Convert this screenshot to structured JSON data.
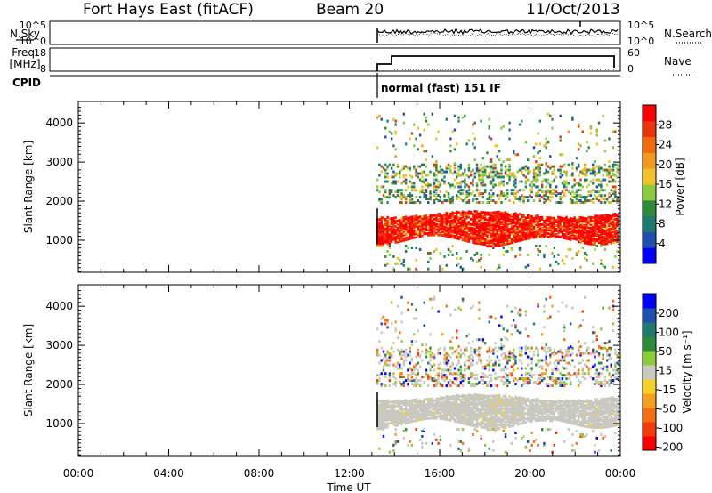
{
  "header": {
    "station": "Fort Hays East (fitACF)",
    "beam": "Beam 20",
    "date": "11/Oct/2013"
  },
  "noise_panel": {
    "left_label": "N.Sky",
    "right_label": "N.Search",
    "ticks_left": [
      "10^5",
      "10^0"
    ],
    "ticks_right": [
      "10^5",
      "10^0"
    ]
  },
  "freq_panel": {
    "left_label_1": "Freq.",
    "left_label_2": "[MHz]",
    "right_label": "Nave",
    "ticks_left": [
      "18",
      "8"
    ],
    "ticks_right": [
      "60",
      "0"
    ]
  },
  "cpid": {
    "label": "CPID",
    "mode": "normal (fast) 151 IF"
  },
  "colors": {
    "power_scale": [
      "#0000ff",
      "#1f4fb0",
      "#1e7a6e",
      "#2f8a3c",
      "#8ccc3c",
      "#f2c22a",
      "#f29a1e",
      "#f26a0e",
      "#e6360a",
      "#ff0000"
    ],
    "velocity_scale": [
      "#ff0000",
      "#f23a0a",
      "#f56f12",
      "#f5a01c",
      "#f6cf2a",
      "#c8c8c0",
      "#8ccc3c",
      "#2f8a3c",
      "#1e7a6e",
      "#1f4fb0",
      "#0000ff"
    ],
    "velocity_gs": "#c8c8c0"
  },
  "chart_data": [
    {
      "type": "heatmap",
      "name": "power",
      "xlabel": "",
      "ylabel": "Slant Range [km]",
      "xlim": [
        0,
        24
      ],
      "ylim": [
        180,
        4550
      ],
      "yticks": [
        "1000",
        "2000",
        "3000",
        "4000"
      ],
      "colorbar_label": "Power [dB]",
      "colorbar_ticks": [
        "4",
        "8",
        "12",
        "16",
        "20",
        "24",
        "28"
      ],
      "colorbar_range": [
        0,
        30
      ]
    },
    {
      "type": "heatmap",
      "name": "velocity",
      "xlabel": "Time UT",
      "ylabel": "Slant Range [km]",
      "xlim": [
        0,
        24
      ],
      "ylim": [
        180,
        4550
      ],
      "yticks": [
        "1000",
        "2000",
        "3000",
        "4000"
      ],
      "xticks": [
        "00:00",
        "04:00",
        "08:00",
        "12:00",
        "16:00",
        "20:00",
        "00:00"
      ],
      "colorbar_label": "Velocity [m s⁻¹]",
      "colorbar_ticks": [
        "200",
        "100",
        "50",
        "15",
        "-15",
        "-50",
        "-100",
        "-200"
      ]
    }
  ]
}
